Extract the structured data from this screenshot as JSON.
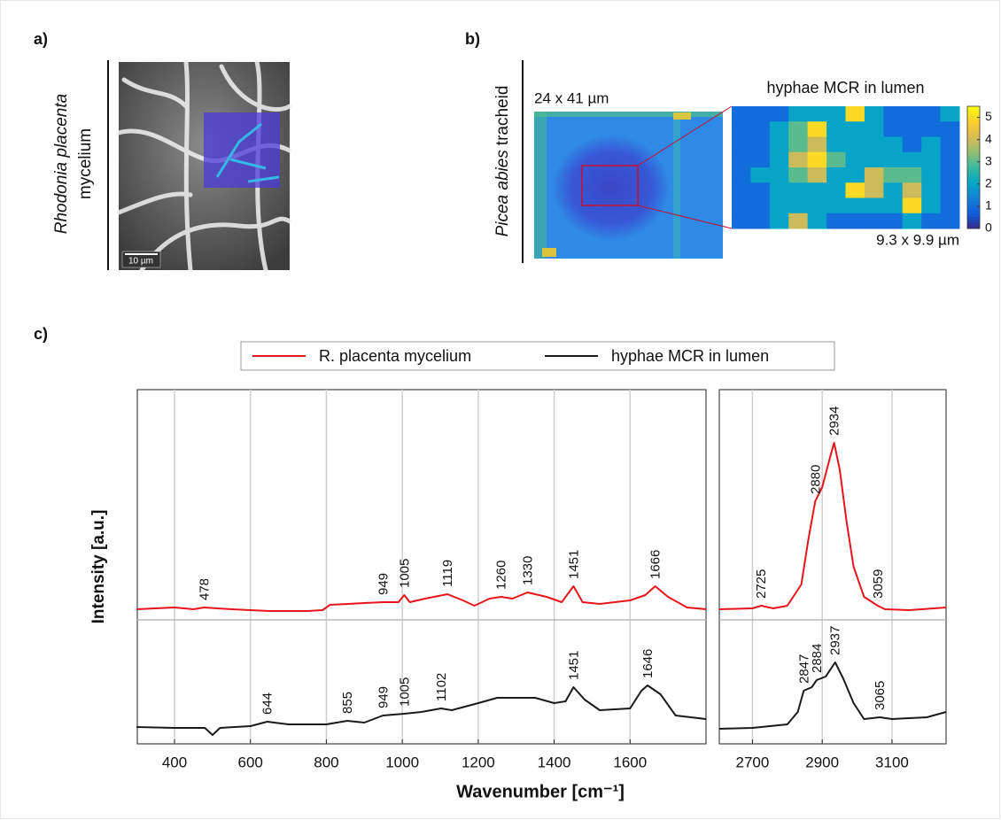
{
  "panels": {
    "a": "a)",
    "b": "b)",
    "c": "c)"
  },
  "panel_a": {
    "sample_italic": "Rhodonia placenta",
    "sample": "mycelium",
    "scale_bar": "10 µm"
  },
  "panel_b": {
    "sample_italic": "Picea abies",
    "sample": "tracheid",
    "overview_size": "24 x 41 µm"
  },
  "chart_data": [
    {
      "type": "heatmap",
      "title": "hyphae MCR in lumen",
      "subtitle": "9.3 x 9.9 µm",
      "values": [
        [
          1,
          1,
          1,
          2,
          2,
          2,
          5,
          2,
          1,
          1,
          1,
          2
        ],
        [
          1,
          1,
          2,
          3,
          5,
          2,
          2,
          2,
          1,
          1,
          1,
          1
        ],
        [
          1,
          1,
          2,
          3,
          4,
          2,
          2,
          2,
          2,
          1,
          2,
          1
        ],
        [
          1,
          1,
          2,
          4,
          5,
          3,
          2,
          2,
          2,
          2,
          2,
          1
        ],
        [
          1,
          2,
          2,
          3,
          4,
          2,
          2,
          4,
          3,
          3,
          2,
          1
        ],
        [
          1,
          1,
          2,
          2,
          2,
          2,
          5,
          4,
          2,
          4,
          2,
          1
        ],
        [
          1,
          1,
          2,
          2,
          2,
          2,
          2,
          2,
          2,
          5,
          2,
          1
        ],
        [
          1,
          1,
          2,
          4,
          2,
          1,
          1,
          1,
          1,
          2,
          1,
          1
        ]
      ],
      "colorbar_lim": [
        0,
        5.5
      ],
      "colorbar_ticks": [
        0,
        1,
        2,
        3,
        4,
        5
      ],
      "colormap": "parula"
    },
    {
      "type": "line",
      "xlabel": "Wavenumber [cm⁻¹]",
      "ylabel": "Intensity [a.u.]",
      "xlim": [
        302,
        1800
      ],
      "ylim": [
        0,
        20
      ],
      "xticks": [
        400,
        600,
        800,
        1000,
        1200,
        1400,
        1600
      ],
      "grid": true,
      "hline": 7,
      "series": [
        {
          "name": "R. placenta mycelium",
          "color": "#e8141b",
          "x": [
            300,
            400,
            450,
            478,
            550,
            650,
            750,
            790,
            810,
            900,
            949,
            990,
            1005,
            1020,
            1060,
            1119,
            1160,
            1190,
            1230,
            1260,
            1290,
            1330,
            1380,
            1420,
            1451,
            1475,
            1520,
            1600,
            1640,
            1666,
            1700,
            1750,
            1800
          ],
          "values": [
            7.6,
            7.7,
            7.6,
            7.7,
            7.6,
            7.5,
            7.5,
            7.55,
            7.85,
            7.95,
            8.0,
            8.0,
            8.4,
            8.0,
            8.2,
            8.45,
            8.1,
            7.8,
            8.2,
            8.3,
            8.2,
            8.55,
            8.3,
            8.0,
            8.9,
            8.0,
            7.9,
            8.1,
            8.4,
            8.9,
            8.3,
            7.7,
            7.6
          ],
          "peaks": [
            478,
            949,
            1005,
            1119,
            1260,
            1330,
            1451,
            1666
          ]
        },
        {
          "name": "hyphae MCR in lumen",
          "color": "#1a1a1a",
          "x": [
            300,
            400,
            480,
            500,
            520,
            600,
            644,
            700,
            800,
            855,
            900,
            949,
            1005,
            1050,
            1102,
            1130,
            1200,
            1250,
            1300,
            1350,
            1400,
            1430,
            1451,
            1480,
            1520,
            1600,
            1630,
            1646,
            1680,
            1720,
            1800
          ],
          "values": [
            0.95,
            0.9,
            0.9,
            0.5,
            0.9,
            1.0,
            1.25,
            1.1,
            1.1,
            1.3,
            1.2,
            1.6,
            1.7,
            1.8,
            2.0,
            1.9,
            2.3,
            2.6,
            2.6,
            2.6,
            2.3,
            2.4,
            3.2,
            2.5,
            1.9,
            2.0,
            3.0,
            3.3,
            2.8,
            1.6,
            1.4
          ],
          "peaks": [
            644,
            855,
            949,
            1005,
            1102,
            1451,
            1646
          ]
        }
      ]
    },
    {
      "type": "line",
      "xlim": [
        2605,
        3255
      ],
      "ylim": [
        0,
        20
      ],
      "xticks": [
        2700,
        2900,
        3100
      ],
      "grid": true,
      "hline": 7,
      "series": [
        {
          "color": "#e8141b",
          "x": [
            2605,
            2700,
            2725,
            2760,
            2800,
            2840,
            2860,
            2880,
            2900,
            2920,
            2934,
            2950,
            2970,
            2990,
            3020,
            3059,
            3080,
            3150,
            3255
          ],
          "values": [
            7.6,
            7.65,
            7.8,
            7.65,
            7.8,
            9.0,
            11.5,
            13.7,
            14.5,
            16.0,
            17.0,
            15.5,
            12.5,
            10.0,
            8.3,
            7.8,
            7.6,
            7.55,
            7.7
          ],
          "peaks": [
            2725,
            2880,
            2934,
            3059
          ]
        },
        {
          "color": "#1a1a1a",
          "x": [
            2605,
            2700,
            2800,
            2830,
            2847,
            2870,
            2884,
            2910,
            2937,
            2960,
            2990,
            3020,
            3065,
            3100,
            3200,
            3255
          ],
          "values": [
            0.85,
            0.9,
            1.1,
            1.8,
            3.0,
            3.2,
            3.6,
            3.8,
            4.6,
            3.7,
            2.3,
            1.4,
            1.5,
            1.4,
            1.5,
            1.8
          ],
          "peaks": [
            2847,
            2884,
            2937,
            3065
          ]
        }
      ]
    }
  ]
}
